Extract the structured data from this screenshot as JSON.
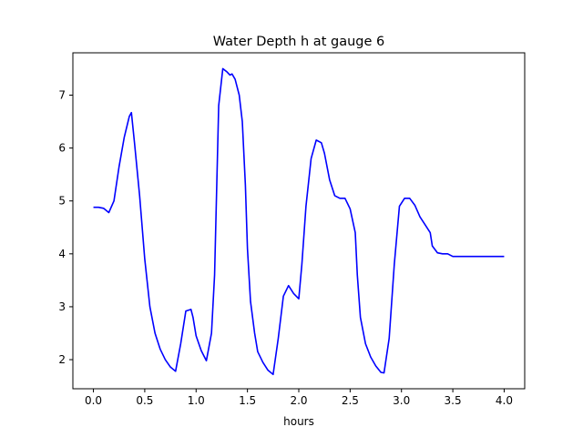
{
  "chart_data": {
    "type": "line",
    "title": "Water Depth h at gauge 6",
    "xlabel": "hours",
    "ylabel": "",
    "xlim": [
      -0.2,
      4.2
    ],
    "ylim": [
      1.45,
      7.8
    ],
    "x_ticks": [
      0.0,
      0.5,
      1.0,
      1.5,
      2.0,
      2.5,
      3.0,
      3.5,
      4.0
    ],
    "x_tick_labels": [
      "0.0",
      "0.5",
      "1.0",
      "1.5",
      "2.0",
      "2.5",
      "3.0",
      "3.5",
      "4.0"
    ],
    "y_ticks": [
      2,
      3,
      4,
      5,
      6,
      7
    ],
    "y_tick_labels": [
      "2",
      "3",
      "4",
      "5",
      "6",
      "7"
    ],
    "grid": false,
    "legend": null,
    "series": [
      {
        "color": "#0000ff",
        "x": [
          0.0,
          0.05,
          0.1,
          0.15,
          0.2,
          0.25,
          0.3,
          0.35,
          0.37,
          0.4,
          0.45,
          0.5,
          0.55,
          0.6,
          0.65,
          0.7,
          0.75,
          0.8,
          0.85,
          0.9,
          0.95,
          0.97,
          1.0,
          1.05,
          1.1,
          1.15,
          1.18,
          1.22,
          1.26,
          1.3,
          1.33,
          1.35,
          1.38,
          1.42,
          1.45,
          1.48,
          1.5,
          1.53,
          1.57,
          1.6,
          1.65,
          1.7,
          1.75,
          1.8,
          1.85,
          1.9,
          1.95,
          2.0,
          2.03,
          2.07,
          2.12,
          2.17,
          2.22,
          2.25,
          2.3,
          2.35,
          2.4,
          2.45,
          2.5,
          2.55,
          2.57,
          2.6,
          2.65,
          2.7,
          2.75,
          2.8,
          2.83,
          2.88,
          2.93,
          2.98,
          3.03,
          3.08,
          3.13,
          3.18,
          3.23,
          3.28,
          3.3,
          3.35,
          3.4,
          3.45,
          3.5,
          3.55,
          3.58,
          3.62,
          3.67,
          3.7,
          3.75,
          3.8,
          3.85,
          3.9,
          3.95,
          4.0
        ],
        "y": [
          4.88,
          4.88,
          4.86,
          4.78,
          5.0,
          5.65,
          6.2,
          6.6,
          6.67,
          6.1,
          5.1,
          3.9,
          3.0,
          2.5,
          2.2,
          2.0,
          1.86,
          1.78,
          2.3,
          2.92,
          2.95,
          2.8,
          2.45,
          2.17,
          1.98,
          2.5,
          3.6,
          6.8,
          7.5,
          7.44,
          7.38,
          7.4,
          7.3,
          7.0,
          6.5,
          5.3,
          4.1,
          3.1,
          2.5,
          2.15,
          1.95,
          1.8,
          1.72,
          2.4,
          3.2,
          3.4,
          3.25,
          3.15,
          3.8,
          4.9,
          5.8,
          6.15,
          6.1,
          5.9,
          5.4,
          5.1,
          5.05,
          5.05,
          4.85,
          4.4,
          3.6,
          2.8,
          2.3,
          2.05,
          1.88,
          1.76,
          1.75,
          2.4,
          3.8,
          4.9,
          5.05,
          5.05,
          4.92,
          4.7,
          4.55,
          4.4,
          4.15,
          4.02,
          4.0,
          4.0,
          3.95,
          3.95,
          3.95,
          3.95,
          3.95,
          3.95,
          3.95,
          3.95,
          3.95,
          3.95,
          3.95,
          3.95
        ]
      }
    ]
  }
}
